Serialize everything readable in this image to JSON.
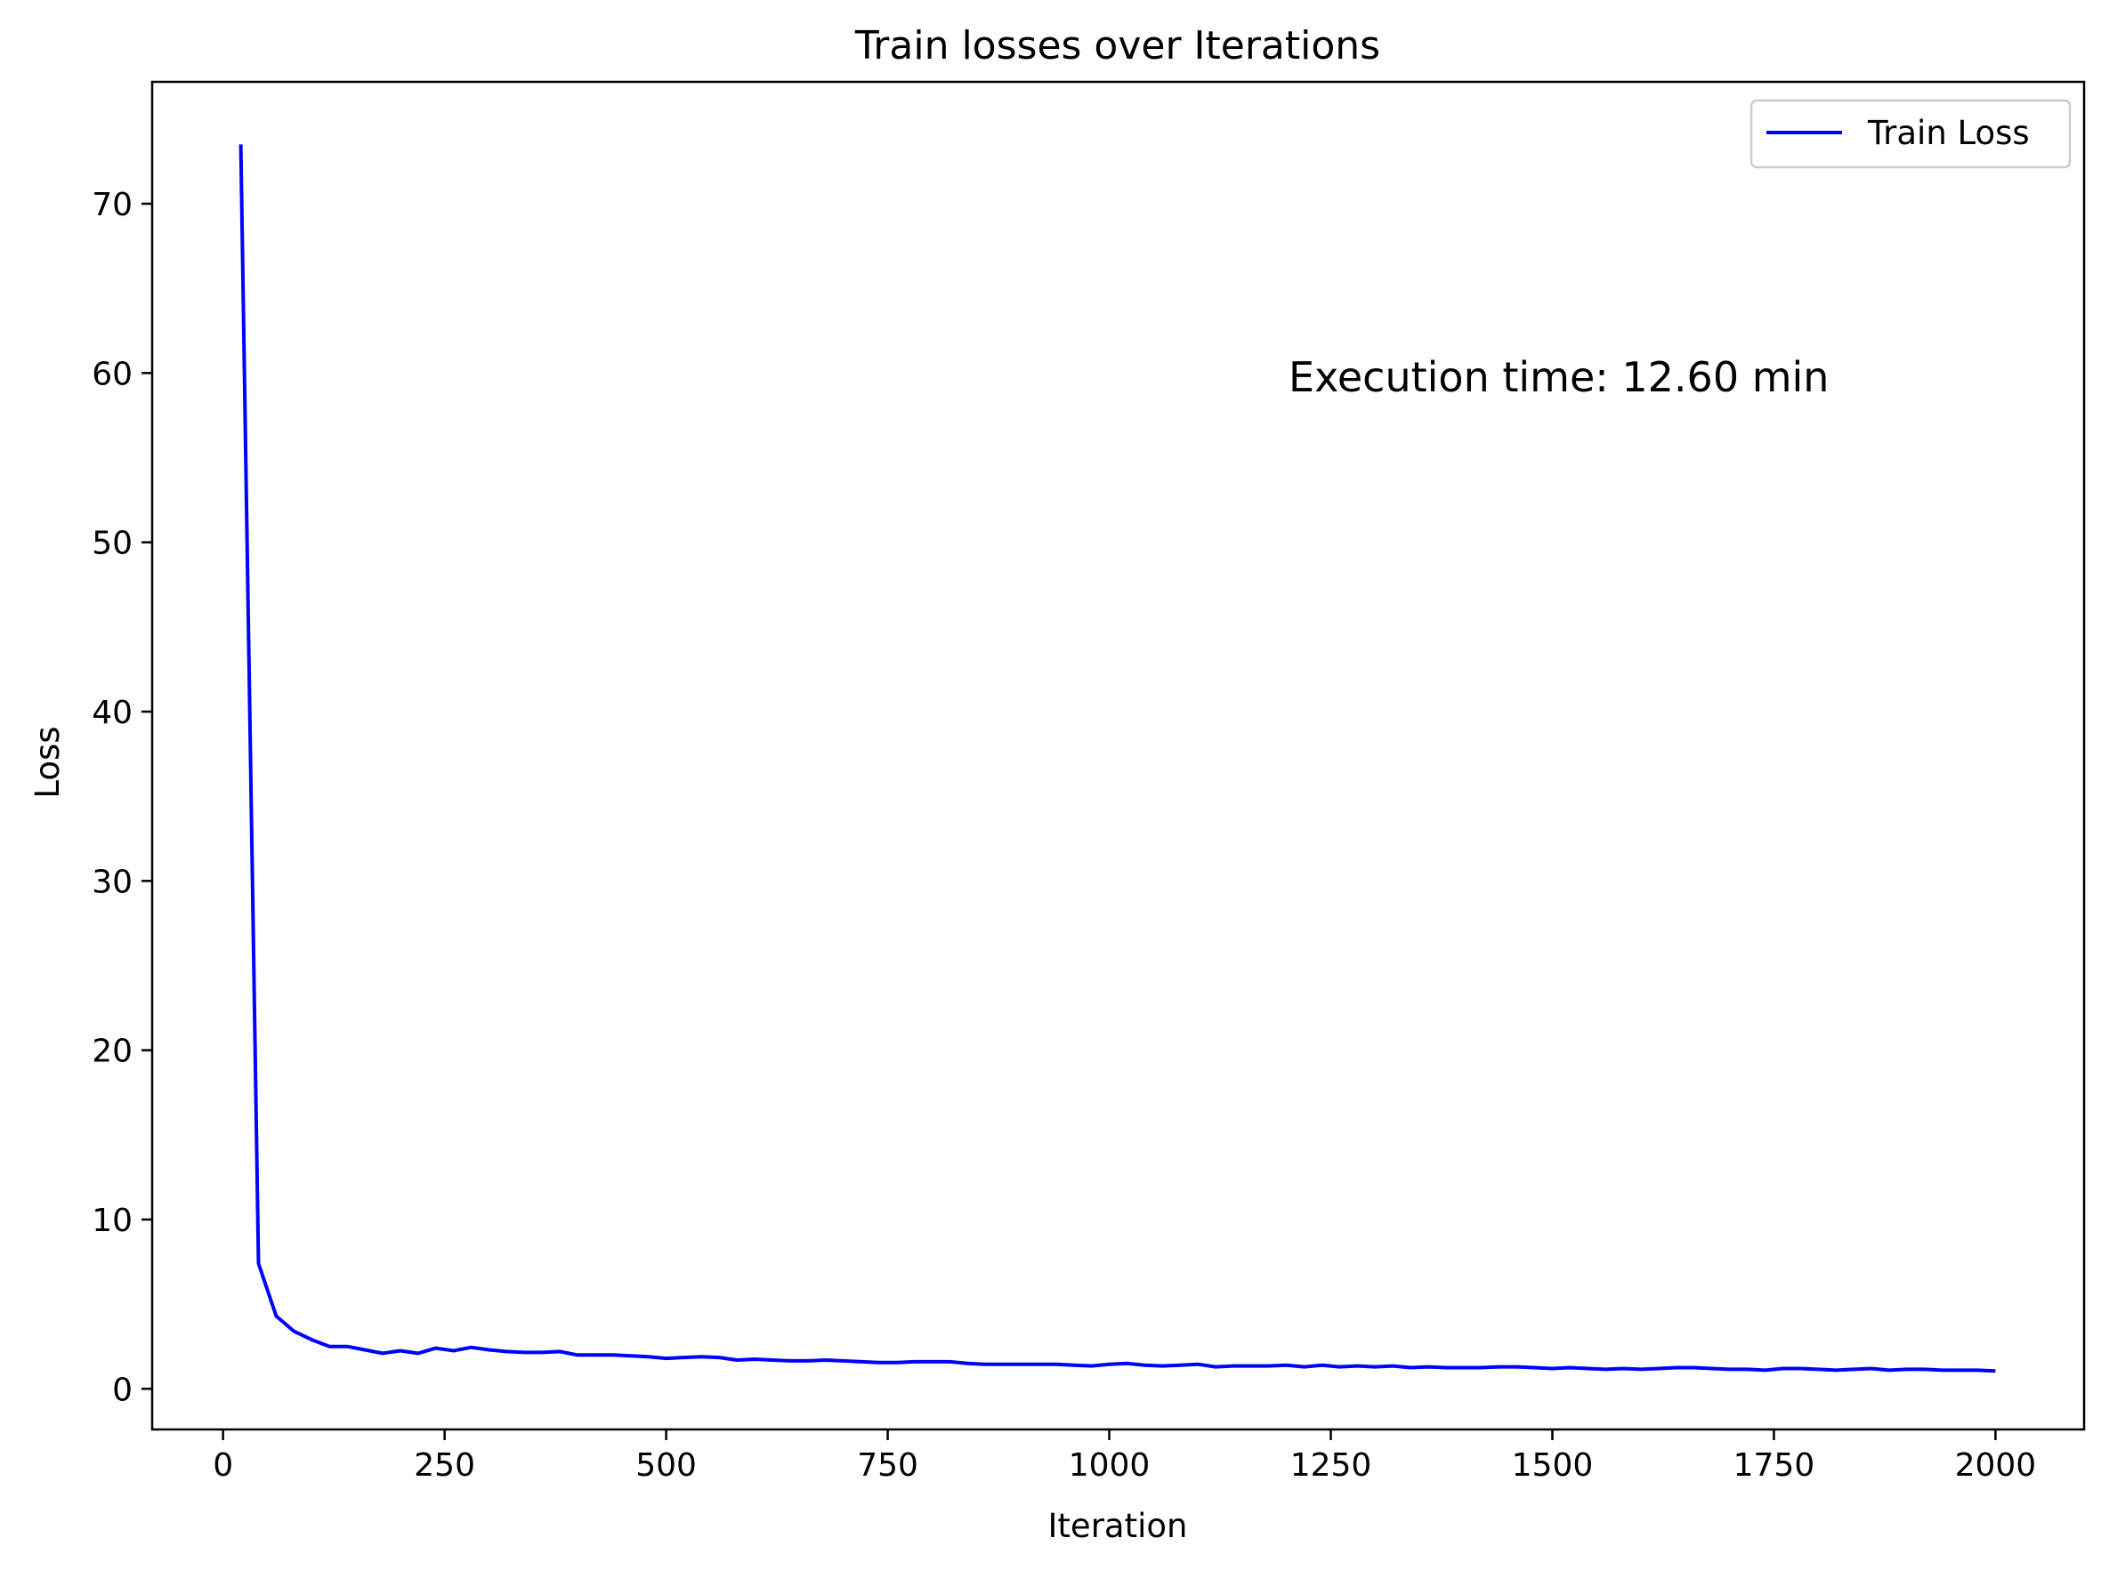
{
  "chart_data": {
    "type": "line",
    "title": "Train losses over Iterations",
    "xlabel": "Iteration",
    "ylabel": "Loss",
    "xlim": [
      -80,
      2100
    ],
    "ylim": [
      -2.4,
      77.2
    ],
    "xticks": [
      0,
      250,
      500,
      750,
      1000,
      1250,
      1500,
      1750,
      2000
    ],
    "yticks": [
      0,
      10,
      20,
      30,
      40,
      50,
      60,
      70
    ],
    "grid": false,
    "legend_position": "top-right",
    "annotation": "Execution time: 12.60 min",
    "series": [
      {
        "name": "Train Loss",
        "color": "#0000ff",
        "x": [
          20,
          40,
          60,
          80,
          100,
          120,
          140,
          160,
          180,
          200,
          220,
          240,
          260,
          280,
          300,
          320,
          340,
          360,
          380,
          400,
          420,
          440,
          460,
          480,
          500,
          520,
          540,
          560,
          580,
          600,
          620,
          640,
          660,
          680,
          700,
          720,
          740,
          760,
          780,
          800,
          820,
          840,
          860,
          880,
          900,
          920,
          940,
          960,
          980,
          1000,
          1020,
          1040,
          1060,
          1080,
          1100,
          1120,
          1140,
          1160,
          1180,
          1200,
          1220,
          1240,
          1260,
          1280,
          1300,
          1320,
          1340,
          1360,
          1380,
          1400,
          1420,
          1440,
          1460,
          1480,
          1500,
          1520,
          1540,
          1560,
          1580,
          1600,
          1620,
          1640,
          1660,
          1680,
          1700,
          1720,
          1740,
          1760,
          1780,
          1800,
          1820,
          1840,
          1860,
          1880,
          1900,
          1920,
          1940,
          1960,
          1980,
          2000
        ],
        "y": [
          73.5,
          7.4,
          4.3,
          3.4,
          2.9,
          2.5,
          2.5,
          2.3,
          2.1,
          2.25,
          2.1,
          2.4,
          2.25,
          2.45,
          2.3,
          2.2,
          2.15,
          2.15,
          2.2,
          2.0,
          2.0,
          2.0,
          1.95,
          1.9,
          1.8,
          1.85,
          1.9,
          1.85,
          1.7,
          1.75,
          1.7,
          1.65,
          1.65,
          1.7,
          1.65,
          1.6,
          1.55,
          1.55,
          1.6,
          1.6,
          1.6,
          1.5,
          1.45,
          1.45,
          1.45,
          1.45,
          1.45,
          1.4,
          1.35,
          1.45,
          1.5,
          1.4,
          1.35,
          1.4,
          1.45,
          1.3,
          1.35,
          1.35,
          1.35,
          1.4,
          1.3,
          1.4,
          1.3,
          1.35,
          1.3,
          1.35,
          1.25,
          1.3,
          1.25,
          1.25,
          1.25,
          1.3,
          1.3,
          1.25,
          1.2,
          1.25,
          1.2,
          1.15,
          1.2,
          1.15,
          1.2,
          1.25,
          1.25,
          1.2,
          1.15,
          1.15,
          1.1,
          1.2,
          1.2,
          1.15,
          1.1,
          1.15,
          1.2,
          1.1,
          1.15,
          1.15,
          1.1,
          1.1,
          1.1,
          1.05
        ]
      }
    ]
  }
}
